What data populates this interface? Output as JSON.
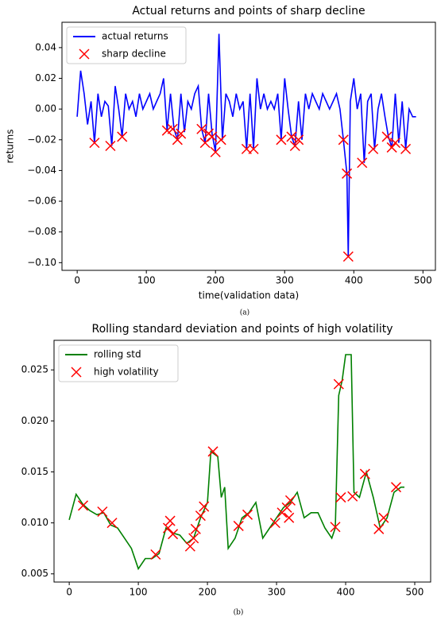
{
  "chart_data": [
    {
      "type": "line",
      "title": "Actual returns and points of sharp decline",
      "xlabel": "time(validation data)",
      "ylabel": "returns",
      "caption": "(a)",
      "legend": "upper left",
      "xlim": [
        -22,
        518
      ],
      "ylim": [
        -0.105,
        0.0565
      ],
      "xticks": [
        0,
        100,
        200,
        300,
        400,
        500
      ],
      "yticks": [
        {
          "value": -0.1,
          "label": "−0.10"
        },
        {
          "value": -0.08,
          "label": "−0.08"
        },
        {
          "value": -0.06,
          "label": "−0.06"
        },
        {
          "value": -0.04,
          "label": "−0.04"
        },
        {
          "value": -0.02,
          "label": "−0.02"
        },
        {
          "value": 0,
          "label": "0.00"
        },
        {
          "value": 0.02,
          "label": "0.02"
        },
        {
          "value": 0.04,
          "label": "0.04"
        }
      ],
      "series": [
        {
          "name": "actual returns",
          "kind": "line",
          "color": "#0000ff",
          "x": [
            0,
            5,
            10,
            15,
            20,
            25,
            30,
            35,
            40,
            45,
            50,
            55,
            60,
            65,
            70,
            75,
            80,
            85,
            90,
            95,
            100,
            105,
            110,
            115,
            120,
            125,
            130,
            135,
            140,
            145,
            150,
            155,
            160,
            165,
            170,
            175,
            180,
            185,
            190,
            195,
            200,
            205,
            210,
            215,
            220,
            225,
            230,
            235,
            240,
            245,
            250,
            255,
            260,
            265,
            270,
            275,
            280,
            285,
            290,
            295,
            300,
            305,
            310,
            315,
            320,
            325,
            330,
            335,
            340,
            345,
            350,
            355,
            360,
            365,
            370,
            375,
            380,
            385,
            390,
            392,
            395,
            400,
            405,
            410,
            415,
            420,
            425,
            430,
            435,
            440,
            445,
            450,
            455,
            460,
            465,
            470,
            475,
            480,
            485,
            490
          ],
          "values": [
            -0.005,
            0.025,
            0.01,
            -0.01,
            0.005,
            -0.022,
            0.01,
            -0.005,
            0.005,
            0.002,
            -0.024,
            0.015,
            0.0,
            -0.018,
            0.01,
            0.0,
            0.005,
            -0.005,
            0.01,
            0.0,
            0.005,
            0.01,
            0.0,
            0.005,
            0.01,
            0.02,
            -0.014,
            0.01,
            -0.013,
            -0.02,
            0.01,
            -0.015,
            0.005,
            0.0,
            0.01,
            0.015,
            -0.013,
            -0.022,
            0.01,
            -0.016,
            -0.028,
            0.049,
            -0.02,
            0.01,
            0.005,
            -0.005,
            0.01,
            0.0,
            0.005,
            -0.026,
            0.01,
            -0.026,
            0.02,
            0.0,
            0.01,
            0.0,
            0.005,
            0.0,
            0.01,
            -0.02,
            0.02,
            0.0,
            -0.018,
            -0.024,
            0.005,
            -0.02,
            0.01,
            0.0,
            0.01,
            0.005,
            0.0,
            0.01,
            0.005,
            0.0,
            0.005,
            0.01,
            0.0,
            -0.02,
            -0.042,
            -0.096,
            0.005,
            0.02,
            0.0,
            0.01,
            -0.035,
            0.005,
            0.01,
            -0.026,
            0.0,
            0.01,
            -0.005,
            -0.018,
            -0.025,
            0.01,
            -0.022,
            0.005,
            -0.026,
            0.0,
            -0.005,
            -0.005
          ]
        },
        {
          "name": "sharp decline",
          "kind": "scatter",
          "color": "#ff0000",
          "x": [
            25,
            48,
            65,
            130,
            138,
            145,
            150,
            180,
            185,
            190,
            195,
            200,
            208,
            245,
            255,
            295,
            310,
            315,
            320,
            385,
            390,
            392,
            412,
            428,
            448,
            455,
            460,
            475
          ],
          "values": [
            -0.022,
            -0.024,
            -0.018,
            -0.014,
            -0.013,
            -0.02,
            -0.016,
            -0.013,
            -0.022,
            -0.016,
            -0.018,
            -0.028,
            -0.02,
            -0.026,
            -0.026,
            -0.02,
            -0.018,
            -0.024,
            -0.02,
            -0.02,
            -0.042,
            -0.096,
            -0.035,
            -0.026,
            -0.018,
            -0.025,
            -0.022,
            -0.026
          ]
        }
      ]
    },
    {
      "type": "line",
      "title": "Rolling standard deviation and points of high volatility",
      "caption": "(b)",
      "legend": "upper left",
      "xlim": [
        -22,
        523
      ],
      "ylim": [
        0.0042,
        0.0279
      ],
      "xticks": [
        0,
        100,
        200,
        300,
        400,
        500
      ],
      "yticks": [
        0.005,
        {
          "value": 0.01,
          "label": "0.010"
        },
        0.015,
        {
          "value": 0.02,
          "label": "0.020"
        },
        0.025
      ],
      "series": [
        {
          "name": "rolling std",
          "kind": "line",
          "color": "#008000",
          "x": [
            0,
            10,
            20,
            30,
            40,
            50,
            60,
            70,
            80,
            90,
            100,
            110,
            120,
            130,
            140,
            150,
            160,
            170,
            180,
            190,
            200,
            205,
            215,
            220,
            225,
            230,
            240,
            250,
            260,
            270,
            280,
            290,
            300,
            310,
            320,
            330,
            340,
            350,
            360,
            370,
            380,
            385,
            390,
            395,
            400,
            408,
            412,
            420,
            430,
            440,
            450,
            460,
            470,
            480,
            485
          ],
          "values": [
            0.0103,
            0.0128,
            0.0118,
            0.0112,
            0.0108,
            0.011,
            0.0098,
            0.0095,
            0.0085,
            0.0075,
            0.0055,
            0.0065,
            0.0065,
            0.007,
            0.0095,
            0.009,
            0.0088,
            0.008,
            0.0085,
            0.0105,
            0.012,
            0.017,
            0.0165,
            0.0125,
            0.0135,
            0.0075,
            0.0085,
            0.0105,
            0.011,
            0.012,
            0.0085,
            0.0095,
            0.0105,
            0.0115,
            0.012,
            0.013,
            0.0105,
            0.011,
            0.011,
            0.0095,
            0.0085,
            0.0095,
            0.0225,
            0.024,
            0.0265,
            0.0265,
            0.013,
            0.0125,
            0.015,
            0.0125,
            0.0095,
            0.0105,
            0.013,
            0.0135,
            0.0135
          ]
        },
        {
          "name": "high volatility",
          "kind": "scatter",
          "color": "#ff0000",
          "x": [
            20,
            48,
            62,
            125,
            143,
            146,
            150,
            175,
            180,
            183,
            190,
            195,
            208,
            245,
            258,
            298,
            308,
            315,
            320,
            318,
            385,
            390,
            393,
            410,
            428,
            448,
            455,
            473
          ],
          "values": [
            0.0117,
            0.0111,
            0.01,
            0.0069,
            0.0095,
            0.0102,
            0.0089,
            0.0077,
            0.0085,
            0.0094,
            0.0107,
            0.0116,
            0.017,
            0.0097,
            0.0108,
            0.01,
            0.011,
            0.0115,
            0.0122,
            0.0105,
            0.0096,
            0.0236,
            0.0125,
            0.0126,
            0.0148,
            0.0094,
            0.0105,
            0.0135
          ]
        }
      ]
    }
  ]
}
